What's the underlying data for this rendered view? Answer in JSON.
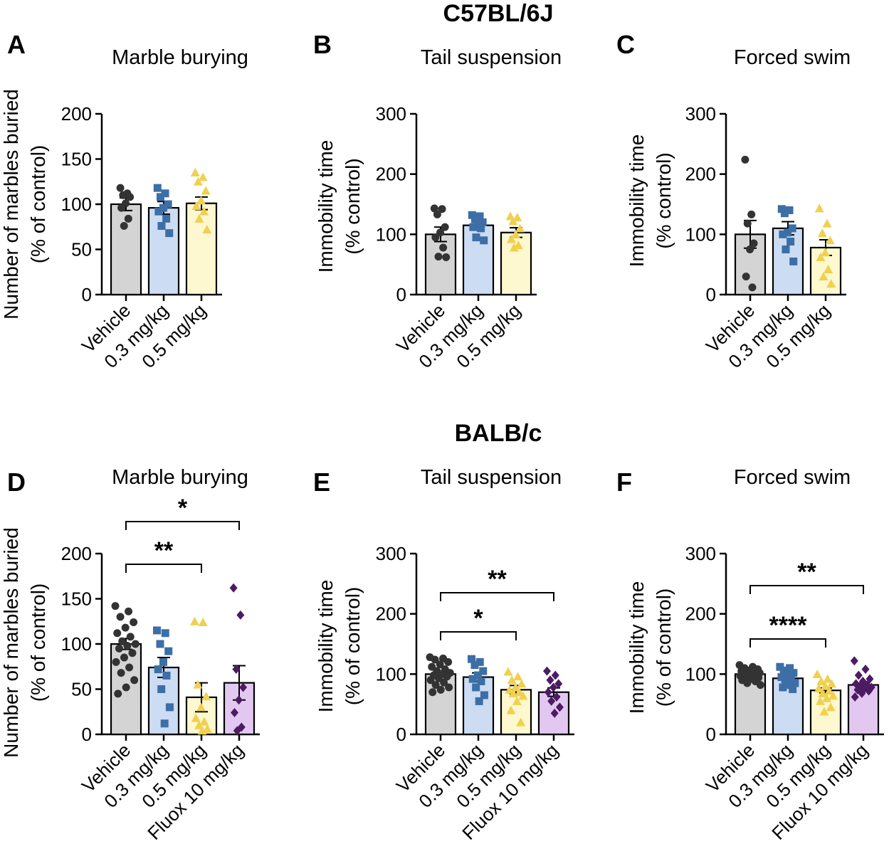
{
  "figure": {
    "strains": [
      "C57BL/6J",
      "BALB/c"
    ],
    "colors": {
      "vehicle_bar": "#d4d4d4",
      "vehicle_dot": "#333333",
      "low_bar": "#ccdcf3",
      "low_dot": "#3d6ea6",
      "mid_bar": "#fdf8cf",
      "mid_dot": "#f0d04f",
      "fluox_bar": "#e2c8f1",
      "fluox_dot": "#4d1b62"
    }
  },
  "chart_data": [
    {
      "panel": "A",
      "strain": "C57BL/6J",
      "type": "bar",
      "title": "Marble burying",
      "ylabel": [
        "Number of marbles buried",
        "(% of control)"
      ],
      "ylim": [
        0,
        200
      ],
      "yticks": [
        0,
        50,
        100,
        150,
        200
      ],
      "categories": [
        "Vehicle",
        "0.3 mg/kg",
        "0.5 mg/kg"
      ],
      "markers": [
        "circle",
        "square",
        "triangle"
      ],
      "values": [
        100,
        96,
        101
      ],
      "sem": [
        7,
        7,
        7
      ],
      "points": [
        [
          118,
          112,
          110,
          108,
          101,
          96,
          84,
          76
        ],
        [
          118,
          112,
          108,
          100,
          96,
          92,
          84,
          76,
          68
        ],
        [
          135,
          130,
          125,
          115,
          104,
          98,
          92,
          84,
          72
        ]
      ],
      "significance": []
    },
    {
      "panel": "B",
      "strain": "C57BL/6J",
      "type": "bar",
      "title": "Tail suspension",
      "ylabel": [
        "Immobility time",
        "(% control)"
      ],
      "ylim": [
        0,
        300
      ],
      "yticks": [
        0,
        100,
        200,
        300
      ],
      "categories": [
        "Vehicle",
        "0.3 mg/kg",
        "0.5 mg/kg"
      ],
      "markers": [
        "circle",
        "square",
        "triangle"
      ],
      "values": [
        100,
        115,
        103
      ],
      "sem": [
        12,
        5,
        8
      ],
      "points": [
        [
          143,
          142,
          133,
          112,
          103,
          95,
          78,
          63,
          62
        ],
        [
          132,
          130,
          125,
          120,
          115,
          112,
          110,
          95,
          90
        ],
        [
          130,
          128,
          122,
          110,
          100,
          92,
          82,
          78
        ]
      ],
      "significance": []
    },
    {
      "panel": "C",
      "strain": "C57BL/6J",
      "type": "bar",
      "title": "Forced swim",
      "ylabel": [
        "Immobility time",
        "(% control)"
      ],
      "ylim": [
        0,
        300
      ],
      "yticks": [
        0,
        100,
        200,
        300
      ],
      "categories": [
        "Vehicle",
        "0.3 mg/kg",
        "0.5 mg/kg"
      ],
      "markers": [
        "circle",
        "square",
        "triangle"
      ],
      "values": [
        100,
        110,
        78
      ],
      "sem": [
        23,
        11,
        13
      ],
      "points": [
        [
          224,
          133,
          118,
          85,
          75,
          30,
          12
        ],
        [
          142,
          140,
          135,
          110,
          103,
          100,
          88,
          75,
          55
        ],
        [
          143,
          118,
          102,
          90,
          70,
          62,
          42,
          30,
          18
        ]
      ],
      "significance": []
    },
    {
      "panel": "D",
      "strain": "BALB/c",
      "type": "bar",
      "title": "Marble burying",
      "ylabel": [
        "Number of marbles buried",
        "(% of control)"
      ],
      "ylim": [
        0,
        200
      ],
      "yticks": [
        0,
        50,
        100,
        150,
        200
      ],
      "categories": [
        "Vehicle",
        "0.3 mg/kg",
        "0.5 mg/kg",
        "Fluox 10 mg/kg"
      ],
      "markers": [
        "circle",
        "square",
        "triangle",
        "diamond"
      ],
      "values": [
        100,
        74,
        41,
        57
      ],
      "sem": [
        6,
        11,
        16,
        19
      ],
      "points": [
        [
          142,
          136,
          130,
          124,
          118,
          112,
          108,
          103,
          100,
          98,
          95,
          90,
          85,
          80,
          74,
          68,
          60,
          52,
          45
        ],
        [
          115,
          112,
          100,
          92,
          80,
          72,
          65,
          50,
          30,
          12
        ],
        [
          125,
          124,
          55,
          42,
          30,
          18,
          14,
          10,
          6,
          4
        ],
        [
          162,
          132,
          72,
          52,
          38,
          24,
          8,
          4
        ]
      ],
      "significance": [
        {
          "from": 0,
          "to": 3,
          "label": "*"
        },
        {
          "from": 0,
          "to": 2,
          "label": "**"
        }
      ]
    },
    {
      "panel": "E",
      "strain": "BALB/c",
      "type": "bar",
      "title": "Tail suspension",
      "ylabel": [
        "Immobility time",
        "(% of control)"
      ],
      "ylim": [
        0,
        300
      ],
      "yticks": [
        0,
        100,
        200,
        300
      ],
      "categories": [
        "Vehicle",
        "0.3 mg/kg",
        "0.5 mg/kg",
        "Fluox 10 mg/kg"
      ],
      "markers": [
        "circle",
        "square",
        "triangle",
        "diamond"
      ],
      "values": [
        100,
        95,
        74,
        70
      ],
      "sem": [
        4,
        7,
        7,
        7
      ],
      "points": [
        [
          128,
          126,
          124,
          120,
          116,
          112,
          108,
          105,
          102,
          100,
          98,
          96,
          93,
          90,
          86,
          82,
          78,
          74,
          70
        ],
        [
          125,
          120,
          115,
          105,
          98,
          92,
          88,
          78,
          65,
          55
        ],
        [
          104,
          96,
          90,
          84,
          78,
          74,
          70,
          68,
          64,
          55,
          40,
          20
        ],
        [
          105,
          98,
          90,
          84,
          78,
          70,
          62,
          55,
          45,
          35
        ]
      ],
      "significance": [
        {
          "from": 0,
          "to": 3,
          "label": "**"
        },
        {
          "from": 0,
          "to": 2,
          "label": "*"
        }
      ]
    },
    {
      "panel": "F",
      "strain": "BALB/c",
      "type": "bar",
      "title": "Forced swim",
      "ylabel": [
        "Immobility time",
        "(% of control)"
      ],
      "ylim": [
        0,
        300
      ],
      "yticks": [
        0,
        100,
        200,
        300
      ],
      "categories": [
        "Vehicle",
        "0.3 mg/kg",
        "0.5 mg/kg",
        "Fluox 10 mg/kg"
      ],
      "markers": [
        "circle",
        "square",
        "triangle",
        "diamond"
      ],
      "values": [
        100,
        93,
        73,
        82
      ],
      "sem": [
        2,
        3,
        4,
        3
      ],
      "points": [
        [
          115,
          112,
          110,
          108,
          106,
          105,
          104,
          103,
          102,
          101,
          100,
          99,
          98,
          97,
          96,
          95,
          94,
          92,
          90,
          88,
          85,
          82
        ],
        [
          112,
          110,
          106,
          102,
          98,
          95,
          92,
          88,
          85,
          82,
          78,
          75
        ],
        [
          100,
          92,
          88,
          84,
          80,
          76,
          72,
          68,
          64,
          60,
          55,
          45,
          38
        ],
        [
          122,
          108,
          98,
          92,
          88,
          84,
          82,
          80,
          78,
          76,
          74,
          72,
          68,
          62
        ]
      ],
      "significance": [
        {
          "from": 0,
          "to": 3,
          "label": "**"
        },
        {
          "from": 0,
          "to": 2,
          "label": "****"
        }
      ]
    }
  ]
}
